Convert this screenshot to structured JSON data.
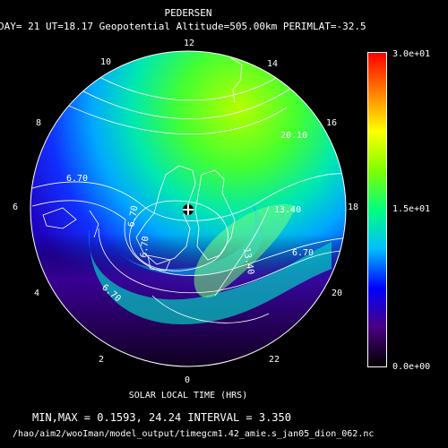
{
  "header": {
    "title": "PEDERSEN",
    "subtitle": "DAY= 21 UT=18.17 Geopotential Altitude=505.00km PERIMLAT=-32.5"
  },
  "local_time_labels": [
    "12",
    "14",
    "16",
    "18",
    "20",
    "22",
    "0",
    "2",
    "4",
    "6",
    "8",
    "10"
  ],
  "contour_labels": [
    "6.70",
    "6.70",
    "6.70",
    "6.70",
    "6.70",
    "13.40",
    "13.40",
    "20.10"
  ],
  "colorbar": {
    "max_label": "3.0e+01",
    "mid_label": "1.5e+01",
    "min_label": "0.0e+00",
    "colors": [
      "#000000",
      "#4b0082",
      "#0000ff",
      "#00bfff",
      "#00ff7f",
      "#7fff00",
      "#ffff00",
      "#ff7f00",
      "#ff0000"
    ]
  },
  "footer": {
    "axis_label": "SOLAR LOCAL TIME (HRS)",
    "minmax": "MIN,MAX =     0.1593,     24.24 INTERVAL =      3.350",
    "path": "/hao/aim2/wooIman/model_output/timegcm1.42_amie.s_jan05_dion_062.nc"
  }
}
